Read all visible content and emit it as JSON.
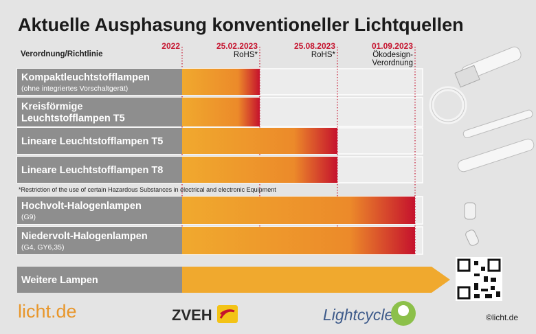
{
  "title": "Aktuelle Ausphasung konventioneller Lichtquellen",
  "column_header": "Verordnung/Richtlinie",
  "milestones": [
    {
      "date": "2022",
      "lines": []
    },
    {
      "date": "25.02.2023",
      "lines": [
        "RoHS*"
      ]
    },
    {
      "date": "25.08.2023",
      "lines": [
        "RoHS*"
      ]
    },
    {
      "date": "01.09.2023",
      "lines": [
        "Ökodesign-",
        "Verordnung"
      ]
    }
  ],
  "rows": [
    {
      "lines": [
        "Kompaktleuchtstofflampen"
      ],
      "subtitle": "(ohne integriertes Vorschaltgerät)",
      "until": "25.02.2023"
    },
    {
      "lines": [
        "Kreisförmige",
        "Leuchtstofflampen T5"
      ],
      "until": "25.02.2023"
    },
    {
      "lines": [
        "Lineare Leuchtstofflampen T5"
      ],
      "until": "25.08.2023"
    },
    {
      "lines": [
        "Lineare Leuchtstofflampen T8"
      ],
      "until": "25.08.2023"
    },
    {
      "lines": [
        "Hochvolt-Halogenlampen"
      ],
      "subtitle": "(G9)",
      "until": "01.09.2023"
    },
    {
      "lines": [
        "Niedervolt-Halogenlampen"
      ],
      "subtitle": "(G4, GY6,35)",
      "until": "01.09.2023"
    }
  ],
  "footnote": "*Restriction of the use of certain Hazardous Substances in electrical and electronic Equipment",
  "other_row": "Weitere Lampen",
  "footer": {
    "logo_left": "licht.de",
    "logo_middle": "ZVEH",
    "logo_right": "Lightcycle",
    "copyright": "©licht.de"
  }
}
